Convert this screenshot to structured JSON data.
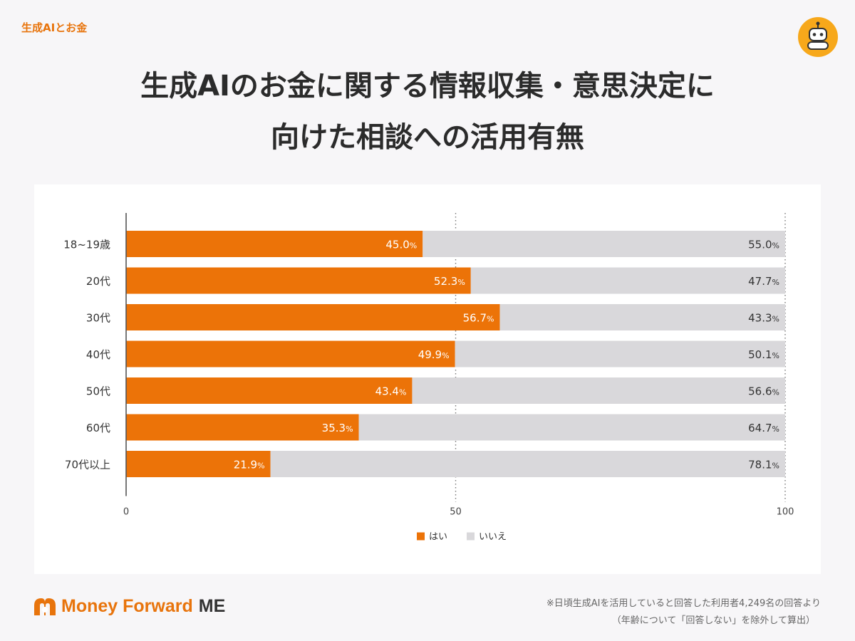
{
  "header": {
    "category": "生成AIとお金",
    "title_line1": "生成AIのお金に関する情報収集・意思決定に",
    "title_line2": "向けた相談への活用有無"
  },
  "chart_data": {
    "type": "bar",
    "orientation": "horizontal",
    "stacked": true,
    "categories": [
      "18~19歳",
      "20代",
      "30代",
      "40代",
      "50代",
      "60代",
      "70代以上"
    ],
    "series": [
      {
        "name": "はい",
        "values": [
          45.0,
          52.3,
          56.7,
          49.9,
          43.4,
          35.3,
          21.9
        ],
        "color": "#ec7308"
      },
      {
        "name": "いいえ",
        "values": [
          55.0,
          47.7,
          43.3,
          50.1,
          56.6,
          64.7,
          78.1
        ],
        "color": "#d9d8db"
      }
    ],
    "value_suffix": "%",
    "xlim": [
      0,
      100
    ],
    "xticks": [
      0,
      50,
      100
    ],
    "legend_position": "bottom-center",
    "grid": "dotted lines at 50 and 100"
  },
  "footer": {
    "brand": "Money Forward",
    "brand_suffix": "ME",
    "note_line1": "※日頃生成AIを活用していると回答した利用者4,249名の回答より",
    "note_line2": "（年齢について「回答しない」を除外して算出）"
  },
  "icons": {
    "badge": "robot-icon",
    "brand_logo": "money-forward-logo-icon"
  },
  "colors": {
    "accent": "#ec7308",
    "no": "#d9d8db",
    "badge": "#f7a81b"
  }
}
